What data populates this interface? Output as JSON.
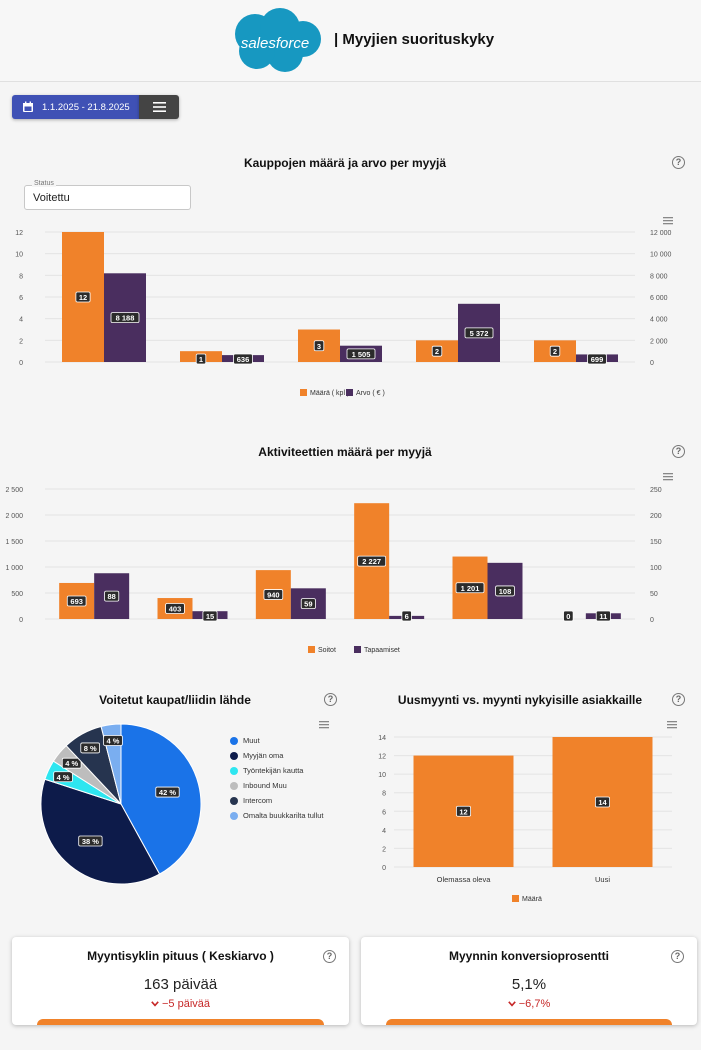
{
  "header": {
    "logo_text": "salesforce",
    "title": "| Myyjien suorituskyky"
  },
  "toolbar": {
    "date_range": "1.1.2025 - 21.8.2025"
  },
  "colors": {
    "orange": "#f0822a",
    "purple": "#4a2e5f",
    "brand_blue": "#1798c1",
    "date_button": "#3f51b5"
  },
  "icons": {
    "date": "calendar-icon",
    "menu": "menu-icon",
    "help": "help-circle-icon",
    "chart_menu": "chart-menu-icon",
    "delta": "chevron-down-icon"
  },
  "help_mark": "?",
  "section1": {
    "title": "Kauppojen määrä ja arvo per myyjä",
    "status_label": "Status",
    "status_value": "Voitettu"
  },
  "section2": {
    "title": "Aktiviteettien määrä per myyjä"
  },
  "section3": {
    "title": "Voitetut kaupat/liidin lähde"
  },
  "section4": {
    "title": "Uusmyynti vs. myynti nykyisille asiakkaille"
  },
  "cards": [
    {
      "title": "Myyntisyklin pituus ( Keskiarvo )",
      "value": "163 päivää",
      "delta": "−5 päivää"
    },
    {
      "title": "Myynnin konversioprosentti",
      "value": "5,1%",
      "delta": "−6,7%"
    }
  ],
  "chart_data": [
    {
      "type": "bar",
      "title": "Kauppojen määrä ja arvo per myyjä",
      "categories": [
        "",
        "",
        "",
        "",
        ""
      ],
      "series": [
        {
          "name": "Määrä ( kpl )",
          "values": [
            12,
            1,
            3,
            2,
            2
          ],
          "labels": [
            "12",
            "1",
            "3",
            "2",
            "2"
          ],
          "axis": "left",
          "color": "#f0822a"
        },
        {
          "name": "Arvo ( € )",
          "values": [
            8188,
            636,
            1505,
            5372,
            699
          ],
          "labels": [
            "8 188",
            "636",
            "1 505",
            "5 372",
            "699"
          ],
          "axis": "right",
          "color": "#4a2e5f"
        }
      ],
      "y_left": {
        "ticks": [
          "0",
          "2",
          "4",
          "6",
          "8",
          "10",
          "12"
        ],
        "max": 12
      },
      "y_right": {
        "ticks": [
          "0",
          "2 000",
          "4 000",
          "6 000",
          "8 000",
          "10 000",
          "12 000"
        ],
        "max": 12000
      },
      "legend_position": "bottom",
      "grid": true
    },
    {
      "type": "bar",
      "title": "Aktiviteettien määrä per myyjä",
      "categories": [
        "",
        "",
        "",
        "",
        "",
        ""
      ],
      "series": [
        {
          "name": "Soitot",
          "values": [
            693,
            403,
            940,
            2227,
            1201,
            0
          ],
          "labels": [
            "693",
            "403",
            "940",
            "2 227",
            "1 201",
            "0"
          ],
          "axis": "left",
          "color": "#f0822a"
        },
        {
          "name": "Tapaamiset",
          "values": [
            88,
            15,
            59,
            6,
            108,
            11
          ],
          "labels": [
            "88",
            "15",
            "59",
            "6",
            "108",
            "11"
          ],
          "axis": "right",
          "color": "#4a2e5f"
        }
      ],
      "y_left": {
        "ticks": [
          "0",
          "500",
          "1 000",
          "1 500",
          "2 000",
          "2 500"
        ],
        "max": 2500
      },
      "y_right": {
        "ticks": [
          "0",
          "50",
          "100",
          "150",
          "200",
          "250"
        ],
        "max": 250
      },
      "legend_position": "bottom",
      "grid": true
    },
    {
      "type": "pie",
      "title": "Voitetut kaupat/liidin lähde",
      "slices": [
        {
          "name": "Muut",
          "value": 42,
          "label": "42 %",
          "color": "#1a73e8"
        },
        {
          "name": "Myyjän oma",
          "value": 38,
          "label": "38 %",
          "color": "#0d1b4a"
        },
        {
          "name": "Työntekijän kautta",
          "value": 4,
          "label": "4 %",
          "color": "#2ee6f0"
        },
        {
          "name": "Inbound Muu",
          "value": 4,
          "label": "4 %",
          "color": "#bdbdbd"
        },
        {
          "name": "Intercom",
          "value": 8,
          "label": "8 %",
          "color": "#26344f"
        },
        {
          "name": "Omalta buukkarilta tullut",
          "value": 4,
          "label": "4 %",
          "color": "#7aaef0"
        }
      ],
      "legend_position": "right"
    },
    {
      "type": "bar",
      "title": "Uusmyynti vs. myynti nykyisille asiakkaille",
      "categories": [
        "Olemassa oleva",
        "Uusi"
      ],
      "series": [
        {
          "name": "Määrä",
          "values": [
            12,
            14
          ],
          "labels": [
            "12",
            "14"
          ],
          "color": "#f0822a"
        }
      ],
      "y_left": {
        "ticks": [
          "0",
          "2",
          "4",
          "6",
          "8",
          "10",
          "12",
          "14"
        ],
        "max": 14
      },
      "legend_position": "bottom",
      "grid": true
    }
  ]
}
